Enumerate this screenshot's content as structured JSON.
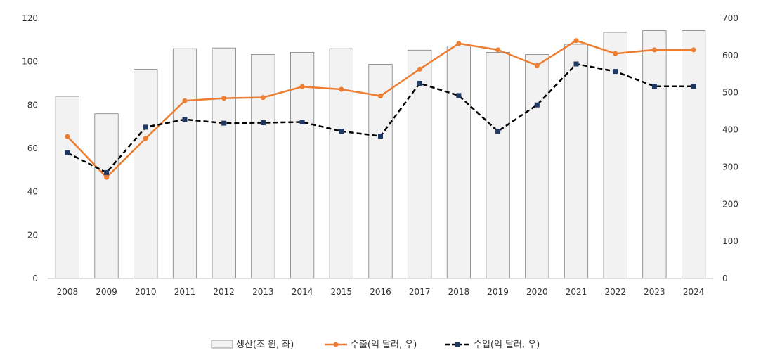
{
  "chart_data": {
    "type": "bar",
    "categories": [
      "2008",
      "2009",
      "2010",
      "2011",
      "2012",
      "2013",
      "2014",
      "2015",
      "2016",
      "2017",
      "2018",
      "2019",
      "2020",
      "2021",
      "2022",
      "2023",
      "2024"
    ],
    "series": [
      {
        "name": "생산(조 원, 좌)",
        "type": "bar",
        "axis": "left",
        "color": "#f2f2f2",
        "values": [
          84,
          76,
          96.5,
          106,
          106.3,
          103.3,
          104.3,
          106,
          98.8,
          105.3,
          107.2,
          104.3,
          103.3,
          108,
          113.5,
          114.3,
          114.3
        ]
      },
      {
        "name": "수출(억 달러, 우)",
        "type": "line",
        "axis": "right",
        "color": "#ed7d31",
        "values": [
          382,
          272,
          377,
          478,
          485,
          487,
          516,
          509,
          491,
          563,
          632,
          615,
          573,
          640,
          605,
          615,
          615
        ]
      },
      {
        "name": "수입(억 달러, 우)",
        "type": "line",
        "axis": "right",
        "color": "#000000",
        "marker_color": "#1f3864",
        "dash": true,
        "values": [
          338,
          285,
          407,
          428,
          418,
          419,
          421,
          396,
          383,
          525,
          492,
          396,
          467,
          577,
          557,
          517,
          517
        ]
      }
    ],
    "left_axis": {
      "min": 0,
      "max": 120,
      "ticks": [
        "0",
        "20",
        "40",
        "60",
        "80",
        "100",
        "120"
      ]
    },
    "right_axis": {
      "min": 0,
      "max": 700,
      "ticks": [
        "0",
        "100",
        "200",
        "300",
        "400",
        "500",
        "600",
        "700"
      ]
    },
    "grid": false,
    "legend_position": "bottom"
  }
}
